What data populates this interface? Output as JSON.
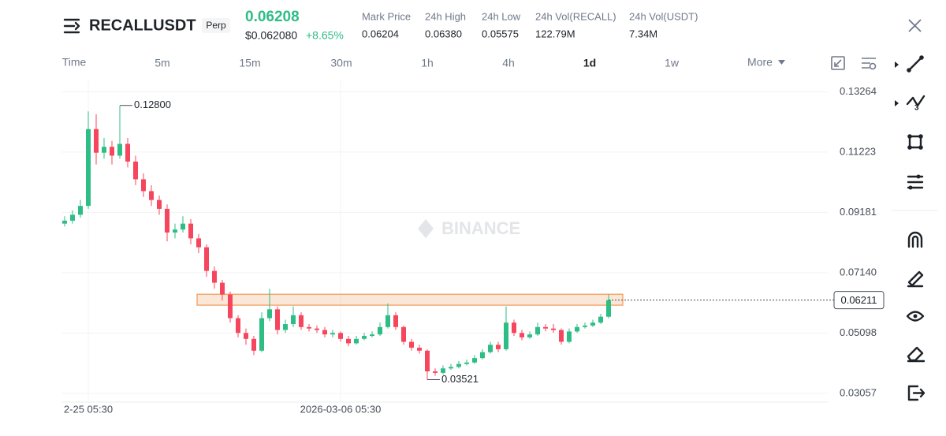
{
  "header": {
    "symbol": "RECALLUSDT",
    "contract": "Perp",
    "last_price": "0.06208",
    "usd_price": "$0.062080",
    "change": "+8.65%",
    "stats": [
      {
        "label": "Mark Price",
        "value": "0.06204"
      },
      {
        "label": "24h High",
        "value": "0.06380"
      },
      {
        "label": "24h Low",
        "value": "0.05575"
      },
      {
        "label": "24h Vol(RECALL)",
        "value": "122.79M"
      },
      {
        "label": "24h Vol(USDT)",
        "value": "7.34M"
      }
    ]
  },
  "toolbar": {
    "intervals": [
      "Time",
      "5m",
      "15m",
      "30m",
      "1h",
      "4h",
      "1d",
      "1w",
      "More"
    ],
    "active": "1d"
  },
  "watermark": "BINANCE",
  "chart_data": {
    "type": "candlestick",
    "up_color": "#2ebd85",
    "down_color": "#f6465d",
    "categories": [
      null,
      null,
      null,
      "2-25 05:30",
      null,
      null,
      null,
      null,
      null,
      null,
      null,
      null,
      null,
      null,
      null,
      null,
      null,
      null,
      null,
      null,
      null,
      null,
      null,
      null,
      null,
      null,
      null,
      null,
      null,
      null,
      null,
      null,
      null,
      null,
      null,
      "2026-03-06 05:30",
      null,
      null,
      null,
      null,
      null,
      null,
      null,
      null,
      null,
      null,
      null,
      null,
      null,
      null,
      null,
      null,
      null,
      null,
      null,
      null,
      null,
      null,
      null,
      null,
      null,
      null,
      null,
      null,
      null,
      null,
      null,
      null,
      null,
      null
    ],
    "open": [
      0.088,
      0.089,
      0.091,
      0.094,
      0.12,
      0.112,
      0.114,
      0.111,
      0.115,
      0.109,
      0.103,
      0.099,
      0.096,
      0.093,
      0.085,
      0.086,
      0.088,
      0.083,
      0.08,
      0.072,
      0.068,
      0.064,
      0.056,
      0.051,
      0.049,
      0.045,
      0.056,
      0.059,
      0.052,
      0.054,
      0.057,
      0.053,
      0.0525,
      0.052,
      0.0505,
      0.051,
      0.049,
      0.0475,
      0.049,
      0.05,
      0.0505,
      0.053,
      0.057,
      0.053,
      0.048,
      0.046,
      0.045,
      0.038,
      0.0375,
      0.039,
      0.0395,
      0.0405,
      0.041,
      0.0425,
      0.0445,
      0.047,
      0.0455,
      0.0545,
      0.051,
      0.0495,
      0.0505,
      0.053,
      0.0525,
      0.052,
      0.048,
      0.0515,
      0.053,
      0.0535,
      0.0545,
      0.0565
    ],
    "high": [
      0.0905,
      0.0925,
      0.096,
      0.126,
      0.125,
      0.117,
      0.116,
      0.128,
      0.117,
      0.111,
      0.105,
      0.101,
      0.0975,
      0.0945,
      0.088,
      0.0905,
      0.0895,
      0.0845,
      0.081,
      0.0735,
      0.069,
      0.065,
      0.057,
      0.0525,
      0.05,
      0.058,
      0.066,
      0.06,
      0.0555,
      0.06,
      0.058,
      0.054,
      0.0535,
      0.053,
      0.052,
      0.0515,
      0.05,
      0.05,
      0.051,
      0.0515,
      0.0545,
      0.061,
      0.058,
      0.0535,
      0.049,
      0.047,
      0.0455,
      0.039,
      0.04,
      0.0405,
      0.0415,
      0.042,
      0.0435,
      0.0455,
      0.048,
      0.048,
      0.06,
      0.0555,
      0.052,
      0.0515,
      0.0545,
      0.054,
      0.054,
      0.0525,
      0.0525,
      0.054,
      0.0545,
      0.0555,
      0.0575,
      0.064
    ],
    "low": [
      0.087,
      0.088,
      0.09,
      0.093,
      0.108,
      0.11,
      0.108,
      0.11,
      0.107,
      0.101,
      0.097,
      0.094,
      0.091,
      0.082,
      0.083,
      0.085,
      0.081,
      0.078,
      0.07,
      0.066,
      0.062,
      0.0545,
      0.0495,
      0.047,
      0.0435,
      0.0445,
      0.055,
      0.0505,
      0.051,
      0.053,
      0.052,
      0.0515,
      0.051,
      0.0495,
      0.0495,
      0.048,
      0.0465,
      0.047,
      0.0485,
      0.0495,
      0.05,
      0.0525,
      0.052,
      0.047,
      0.045,
      0.044,
      0.03521,
      0.0365,
      0.037,
      0.0385,
      0.039,
      0.04,
      0.0405,
      0.042,
      0.044,
      0.0445,
      0.045,
      0.05,
      0.0485,
      0.049,
      0.05,
      0.0515,
      0.051,
      0.047,
      0.0475,
      0.051,
      0.0525,
      0.053,
      0.054,
      0.056
    ],
    "close": [
      0.089,
      0.091,
      0.094,
      0.12,
      0.112,
      0.114,
      0.111,
      0.115,
      0.109,
      0.103,
      0.099,
      0.096,
      0.093,
      0.085,
      0.086,
      0.088,
      0.083,
      0.08,
      0.072,
      0.068,
      0.064,
      0.056,
      0.051,
      0.049,
      0.045,
      0.056,
      0.059,
      0.052,
      0.054,
      0.057,
      0.053,
      0.0525,
      0.052,
      0.0505,
      0.051,
      0.049,
      0.0475,
      0.049,
      0.05,
      0.0505,
      0.053,
      0.057,
      0.053,
      0.048,
      0.046,
      0.045,
      0.038,
      0.0375,
      0.039,
      0.0395,
      0.0405,
      0.041,
      0.0425,
      0.0445,
      0.047,
      0.0455,
      0.0545,
      0.051,
      0.0495,
      0.0505,
      0.053,
      0.0525,
      0.052,
      0.048,
      0.0515,
      0.053,
      0.0535,
      0.0545,
      0.0565,
      0.0621
    ],
    "ylim": [
      0.0276,
      0.137
    ],
    "yticks": [
      0.13264,
      0.11223,
      0.09181,
      {
        "value": 0.0714,
        "label": "0.07140"
      },
      0.05098,
      0.03057
    ],
    "grid": true,
    "annotations": [
      {
        "value": 0.128,
        "label": "0.12800",
        "anchor": "high"
      },
      {
        "value": 0.03521,
        "label": "0.03521",
        "anchor": "low"
      }
    ],
    "current_price": {
      "value": 0.06211,
      "label": "0.06211"
    },
    "zone": {
      "low": 0.0604,
      "high": 0.0641,
      "color": "#f0a060"
    }
  }
}
